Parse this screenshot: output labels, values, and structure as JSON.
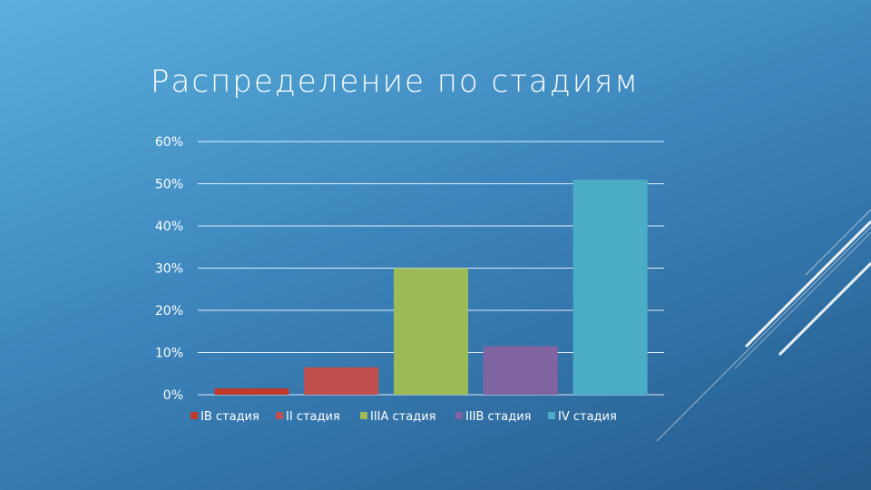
{
  "slide": {
    "title": "Распределение по стадиям"
  },
  "chart_data": {
    "type": "bar",
    "title": "Распределение по стадиям",
    "categories": [
      "IB стадия",
      "II стадия",
      "IIIA стадия",
      "IIIB стадия",
      "IV стадия"
    ],
    "values": [
      1.5,
      6.5,
      30,
      11.5,
      51
    ],
    "colors": [
      "#c0392b",
      "#c0504d",
      "#9bbb59",
      "#8064a2",
      "#4bacc6"
    ],
    "ylim": [
      0,
      60
    ],
    "yticks": [
      0,
      10,
      20,
      30,
      40,
      50,
      60
    ],
    "ytick_labels": [
      "0%",
      "10%",
      "20%",
      "30%",
      "40%",
      "50%",
      "60%"
    ],
    "xlabel": "",
    "ylabel": "",
    "grid": true,
    "legend": {
      "position": "bottom",
      "entries": [
        "IB стадия",
        "II стадия",
        "IIIA стадия",
        "IIIB стадия",
        "IV стадия"
      ]
    }
  }
}
